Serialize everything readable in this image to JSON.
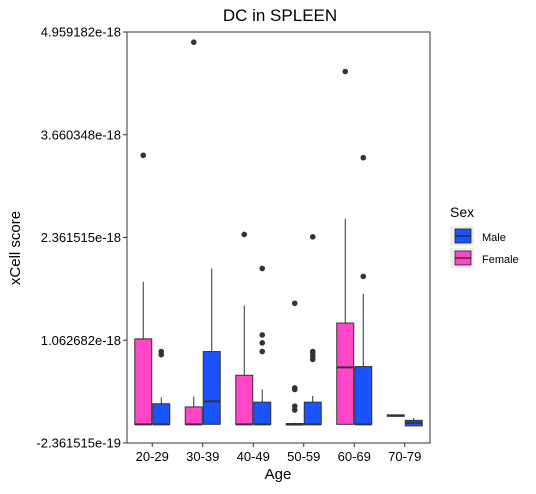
{
  "chart_data": {
    "type": "box",
    "title": "DC in SPLEEN",
    "xlabel": "Age",
    "ylabel": "xCell score",
    "categories": [
      "20-29",
      "30-39",
      "40-49",
      "50-59",
      "60-69",
      "70-79"
    ],
    "yticks": [
      "-2.361515e-19",
      "1.062682e-18",
      "2.361515e-18",
      "3.660348e-18",
      "4.959182e-18"
    ],
    "ylim": [
      -2.361515e-19,
      4.959182e-18
    ],
    "grid": false,
    "legend": {
      "title": "Sex",
      "placement": "right",
      "entries": [
        {
          "name": "Male",
          "color": "#1a53ff"
        },
        {
          "name": "Female",
          "color": "#ff47c7"
        }
      ]
    },
    "series": [
      {
        "name": "Female",
        "color": "#ff47c7",
        "boxes": [
          {
            "category": "20-29",
            "min": 0,
            "q1": 0,
            "median": 0,
            "q3": 1.08e-18,
            "max": 1.8e-18,
            "outliers": [
              3.4e-18
            ]
          },
          {
            "category": "30-39",
            "min": 0,
            "q1": 0,
            "median": 0,
            "q3": 2.2e-19,
            "max": 3.5e-19,
            "outliers": [
              4.83e-18
            ]
          },
          {
            "category": "40-49",
            "min": 0,
            "q1": 0,
            "median": 0,
            "q3": 6.2e-19,
            "max": 1.5e-18,
            "outliers": [
              2.4e-18
            ]
          },
          {
            "category": "50-59",
            "min": 0,
            "q1": 0,
            "median": 0,
            "q3": 1e-20,
            "max": 2e-20,
            "outliers": [
              1.53e-18,
              4.6e-19,
              4.4e-19,
              2.3e-19,
              1.8e-19
            ]
          },
          {
            "category": "60-69",
            "min": 0,
            "q1": 0,
            "median": 7.2e-19,
            "q3": 1.28e-18,
            "max": 2.6e-18,
            "outliers": [
              4.46e-18
            ]
          },
          {
            "category": "70-79",
            "min": 1.1e-19,
            "q1": 1.1e-19,
            "median": 1.1e-19,
            "q3": 1.2e-19,
            "max": 1.2e-19,
            "outliers": []
          }
        ]
      },
      {
        "name": "Male",
        "color": "#1a53ff",
        "boxes": [
          {
            "category": "20-29",
            "min": 0,
            "q1": 0,
            "median": 0,
            "q3": 2.6e-19,
            "max": 3.4e-19,
            "outliers": [
              9.2e-19,
              8.8e-19
            ]
          },
          {
            "category": "30-39",
            "min": 0,
            "q1": 0,
            "median": 2.9e-19,
            "q3": 9.2e-19,
            "max": 1.97e-18,
            "outliers": []
          },
          {
            "category": "40-49",
            "min": 0,
            "q1": 0,
            "median": 0,
            "q3": 2.8e-19,
            "max": 4.4e-19,
            "outliers": [
              1.97e-18,
              1.13e-18,
              1.03e-18,
              9.2e-19
            ]
          },
          {
            "category": "50-59",
            "min": 0,
            "q1": 0,
            "median": 0,
            "q3": 2.8e-19,
            "max": 3.6e-19,
            "outliers": [
              2.37e-18,
              9.2e-19,
              9e-19,
              8.6e-19,
              8.2e-19
            ]
          },
          {
            "category": "60-69",
            "min": 0,
            "q1": 0,
            "median": 0,
            "q3": 7.3e-19,
            "max": 1.65e-18,
            "outliers": [
              3.37e-18,
              1.87e-18
            ]
          },
          {
            "category": "70-79",
            "min": -2e-20,
            "q1": -2e-20,
            "median": 2e-20,
            "q3": 5e-20,
            "max": 8e-20,
            "outliers": []
          }
        ]
      }
    ]
  }
}
